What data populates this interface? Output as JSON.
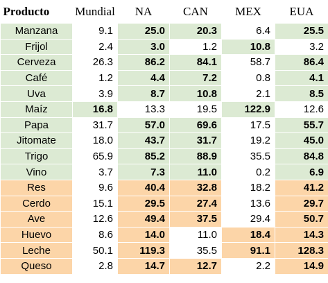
{
  "colors": {
    "plant": "#dcead3",
    "animal": "#fcd5a8",
    "plain": "#ffffff"
  },
  "headers": [
    "Producto",
    "Mundial",
    "NA",
    "CAN",
    "MEX",
    "EUA"
  ],
  "rows": [
    {
      "group": "plant",
      "cells": [
        {
          "v": "Manzana"
        },
        {
          "v": "9.1"
        },
        {
          "v": "25.0",
          "b": true
        },
        {
          "v": "20.3",
          "b": true
        },
        {
          "v": "6.4"
        },
        {
          "v": "25.5",
          "b": true
        }
      ]
    },
    {
      "group": "plant",
      "cells": [
        {
          "v": "Frijol"
        },
        {
          "v": "2.4"
        },
        {
          "v": "3.0",
          "b": true
        },
        {
          "v": "1.2"
        },
        {
          "v": "10.8",
          "b": true
        },
        {
          "v": "3.2"
        }
      ]
    },
    {
      "group": "plant",
      "cells": [
        {
          "v": "Cerveza"
        },
        {
          "v": "26.3"
        },
        {
          "v": "86.2",
          "b": true
        },
        {
          "v": "84.1",
          "b": true
        },
        {
          "v": "58.7"
        },
        {
          "v": "86.4",
          "b": true
        }
      ]
    },
    {
      "group": "plant",
      "cells": [
        {
          "v": "Café"
        },
        {
          "v": "1.2"
        },
        {
          "v": "4.4",
          "b": true
        },
        {
          "v": "7.2",
          "b": true
        },
        {
          "v": "0.8"
        },
        {
          "v": "4.1",
          "b": true
        }
      ]
    },
    {
      "group": "plant",
      "cells": [
        {
          "v": "Uva"
        },
        {
          "v": "3.9"
        },
        {
          "v": "8.7",
          "b": true
        },
        {
          "v": "10.8",
          "b": true
        },
        {
          "v": "2.1"
        },
        {
          "v": "8.5",
          "b": true
        }
      ]
    },
    {
      "group": "plant",
      "cells": [
        {
          "v": "Maíz"
        },
        {
          "v": "16.8",
          "b": true
        },
        {
          "v": "13.3"
        },
        {
          "v": "19.5"
        },
        {
          "v": "122.9",
          "b": true
        },
        {
          "v": "12.6"
        }
      ]
    },
    {
      "group": "plant",
      "cells": [
        {
          "v": "Papa"
        },
        {
          "v": "31.7"
        },
        {
          "v": "57.0",
          "b": true
        },
        {
          "v": "69.6",
          "b": true
        },
        {
          "v": "17.5"
        },
        {
          "v": "55.7",
          "b": true
        }
      ]
    },
    {
      "group": "plant",
      "cells": [
        {
          "v": "Jitomate"
        },
        {
          "v": "18.0"
        },
        {
          "v": "43.7",
          "b": true
        },
        {
          "v": "31.7",
          "b": true
        },
        {
          "v": "19.2"
        },
        {
          "v": "45.0",
          "b": true
        }
      ]
    },
    {
      "group": "plant",
      "cells": [
        {
          "v": "Trigo"
        },
        {
          "v": "65.9"
        },
        {
          "v": "85.2",
          "b": true
        },
        {
          "v": "88.9",
          "b": true
        },
        {
          "v": "35.5"
        },
        {
          "v": "84.8",
          "b": true
        }
      ]
    },
    {
      "group": "plant",
      "cells": [
        {
          "v": "Vino"
        },
        {
          "v": "3.7"
        },
        {
          "v": "7.3",
          "b": true
        },
        {
          "v": "11.0",
          "b": true
        },
        {
          "v": "0.2"
        },
        {
          "v": "6.9",
          "b": true
        }
      ]
    },
    {
      "group": "animal",
      "cells": [
        {
          "v": "Res"
        },
        {
          "v": "9.6"
        },
        {
          "v": "40.4",
          "b": true
        },
        {
          "v": "32.8",
          "b": true
        },
        {
          "v": "18.2"
        },
        {
          "v": "41.2",
          "b": true
        }
      ]
    },
    {
      "group": "animal",
      "cells": [
        {
          "v": "Cerdo"
        },
        {
          "v": "15.1"
        },
        {
          "v": "29.5",
          "b": true
        },
        {
          "v": "27.4",
          "b": true
        },
        {
          "v": "13.6"
        },
        {
          "v": "29.7",
          "b": true
        }
      ]
    },
    {
      "group": "animal",
      "cells": [
        {
          "v": "Ave"
        },
        {
          "v": "12.6"
        },
        {
          "v": "49.4",
          "b": true
        },
        {
          "v": "37.5",
          "b": true
        },
        {
          "v": "29.4"
        },
        {
          "v": "50.7",
          "b": true
        }
      ]
    },
    {
      "group": "animal",
      "cells": [
        {
          "v": "Huevo"
        },
        {
          "v": "8.6"
        },
        {
          "v": "14.0",
          "b": true
        },
        {
          "v": "11.0"
        },
        {
          "v": "18.4",
          "b": true
        },
        {
          "v": "14.3",
          "b": true
        }
      ]
    },
    {
      "group": "animal",
      "cells": [
        {
          "v": "Leche"
        },
        {
          "v": "50.1"
        },
        {
          "v": "119.3",
          "b": true
        },
        {
          "v": "35.5"
        },
        {
          "v": "91.1",
          "b": true
        },
        {
          "v": "128.3",
          "b": true
        }
      ]
    },
    {
      "group": "animal",
      "cells": [
        {
          "v": "Queso"
        },
        {
          "v": "2.8"
        },
        {
          "v": "14.7",
          "b": true
        },
        {
          "v": "12.7",
          "b": true
        },
        {
          "v": "2.2"
        },
        {
          "v": "14.9",
          "b": true
        }
      ]
    }
  ]
}
